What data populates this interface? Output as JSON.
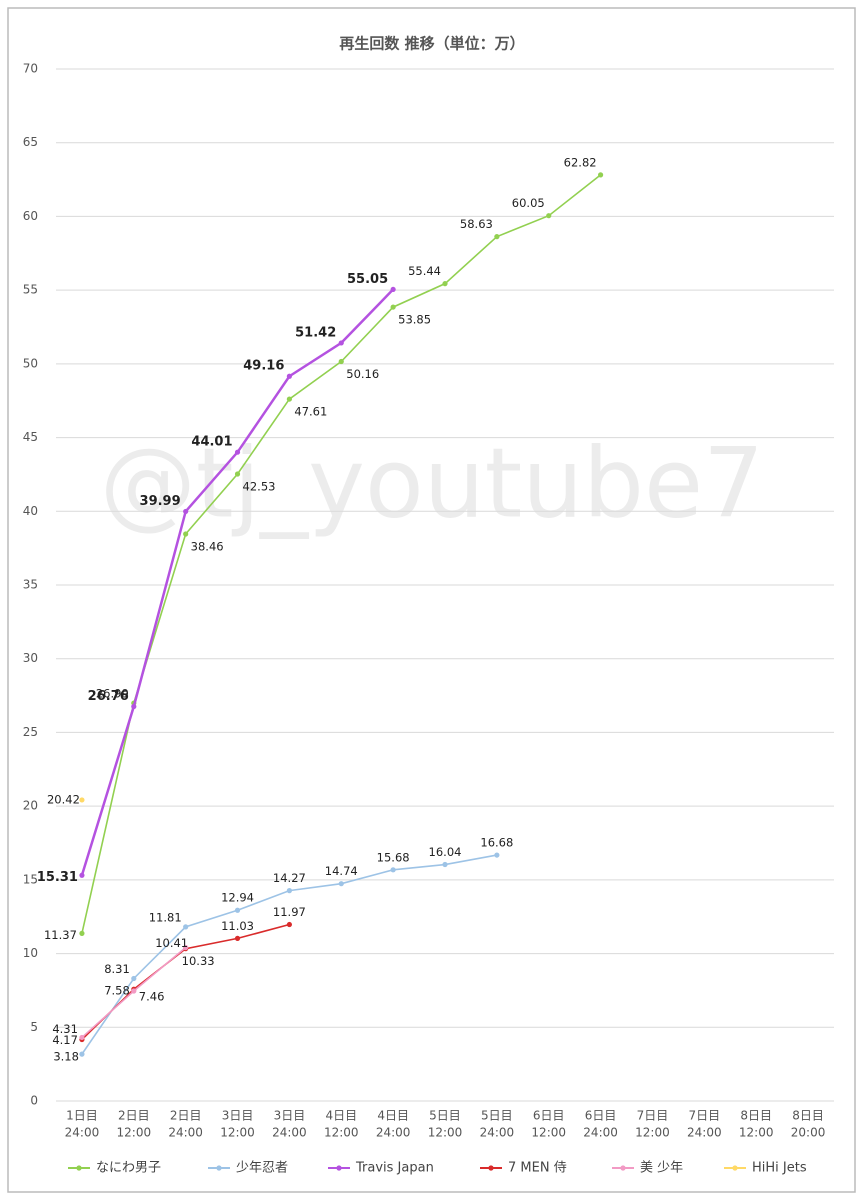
{
  "chart_data": {
    "type": "line",
    "title": "再生回数 推移（単位：万）",
    "watermark": "@tj_youtube7",
    "categories": [
      [
        "1日目",
        "24:00"
      ],
      [
        "2日目",
        "12:00"
      ],
      [
        "2日目",
        "24:00"
      ],
      [
        "3日目",
        "12:00"
      ],
      [
        "3日目",
        "24:00"
      ],
      [
        "4日目",
        "12:00"
      ],
      [
        "4日目",
        "24:00"
      ],
      [
        "5日目",
        "12:00"
      ],
      [
        "5日目",
        "24:00"
      ],
      [
        "6日目",
        "12:00"
      ],
      [
        "6日目",
        "24:00"
      ],
      [
        "7日目",
        "12:00"
      ],
      [
        "7日目",
        "24:00"
      ],
      [
        "8日目",
        "12:00"
      ],
      [
        "8日目",
        "20:00"
      ]
    ],
    "series": [
      {
        "name": "なにわ男子",
        "color": "#92d050",
        "values": [
          11.37,
          26.99,
          38.46,
          42.53,
          47.61,
          50.16,
          53.85,
          55.44,
          58.63,
          60.05,
          62.82,
          null,
          null,
          null,
          null
        ]
      },
      {
        "name": "少年忍者",
        "color": "#9dc3e6",
        "values": [
          3.18,
          8.31,
          11.81,
          12.94,
          14.27,
          14.74,
          15.68,
          16.04,
          16.68,
          null,
          null,
          null,
          null,
          null,
          null
        ]
      },
      {
        "name": "Travis Japan",
        "color": "#b452e0",
        "values": [
          15.31,
          26.76,
          39.99,
          44.01,
          49.16,
          51.42,
          55.05,
          null,
          null,
          null,
          null,
          null,
          null,
          null,
          null
        ]
      },
      {
        "name": "7 MEN 侍",
        "color": "#d92b2b",
        "values": [
          4.17,
          7.58,
          10.33,
          11.03,
          11.97,
          null,
          null,
          null,
          null,
          null,
          null,
          null,
          null,
          null,
          null
        ]
      },
      {
        "name": "美 少年",
        "color": "#f29ac4",
        "values": [
          4.31,
          7.46,
          10.41,
          null,
          null,
          null,
          null,
          null,
          null,
          null,
          null,
          null,
          null,
          null,
          null
        ]
      },
      {
        "name": "HiHi Jets",
        "color": "#ffd966",
        "values": [
          20.42,
          null,
          null,
          null,
          null,
          null,
          null,
          null,
          null,
          null,
          null,
          null,
          null,
          null,
          null
        ]
      }
    ],
    "ylim": [
      0,
      70
    ],
    "yticks": [
      0,
      5,
      10,
      15,
      20,
      25,
      30,
      35,
      40,
      45,
      50,
      55,
      60,
      65,
      70
    ],
    "grid": true,
    "legend": "bottom"
  }
}
